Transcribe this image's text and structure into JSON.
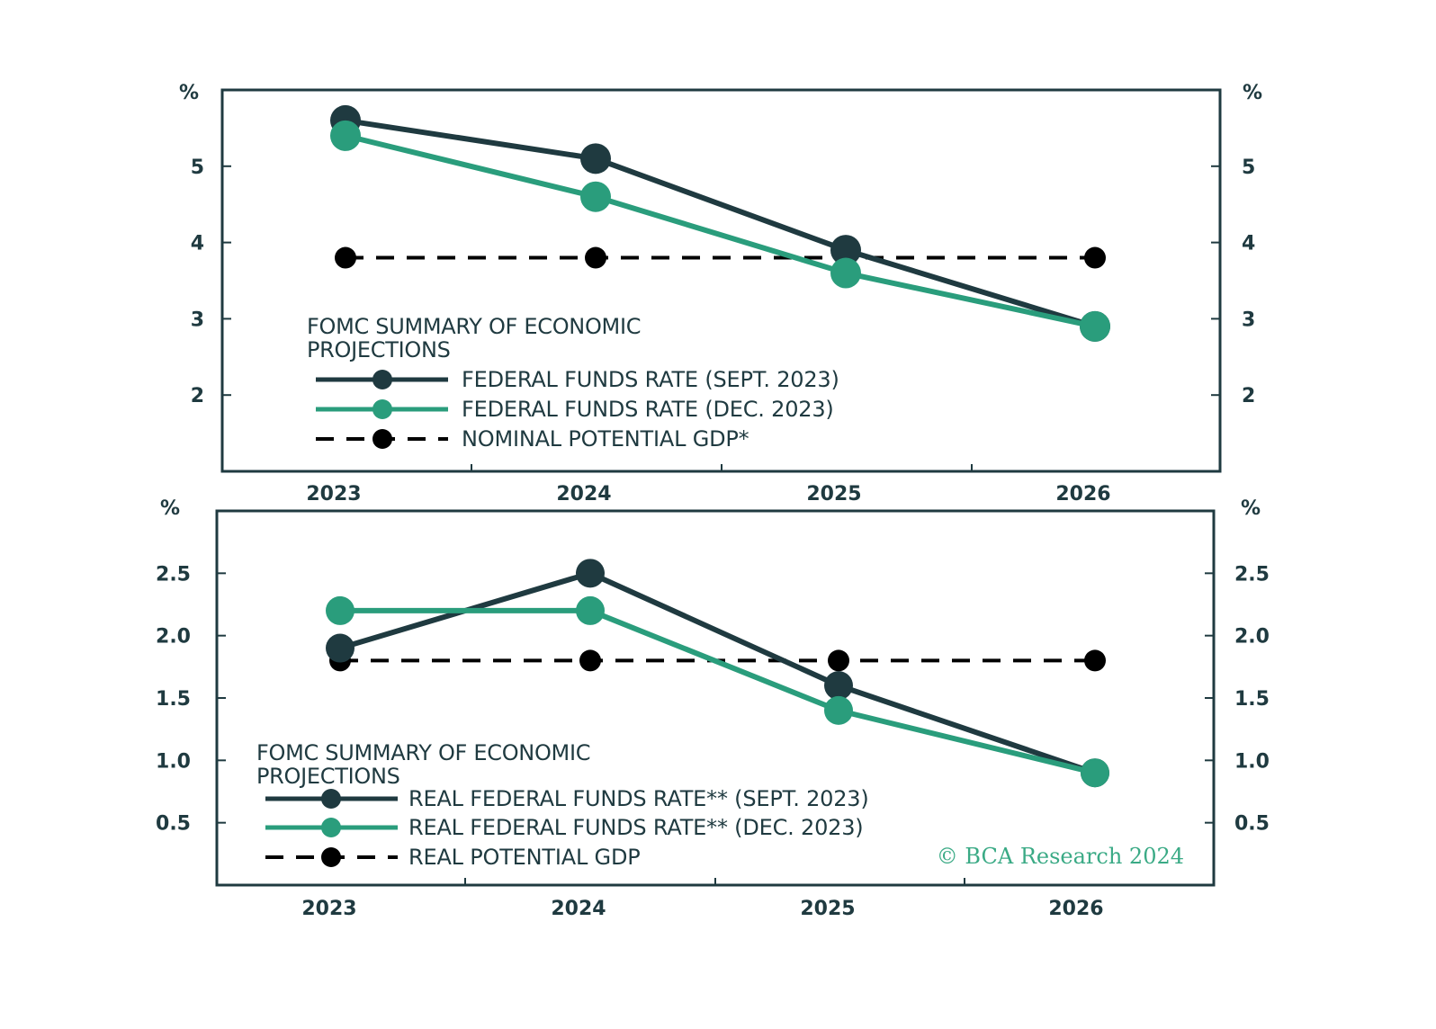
{
  "colors": {
    "sept": "#1f3a40",
    "dec": "#2a9d7c",
    "potential": "#000000",
    "axis": "#1f3a40",
    "watermark": "#3aaa85",
    "text": "#1f3a40"
  },
  "chart_data": [
    {
      "type": "line",
      "panel": "top",
      "categories": [
        "2023",
        "2024",
        "2025",
        "2026"
      ],
      "ylim": [
        1.0,
        6.0
      ],
      "yticks": [
        "5",
        "4",
        "3",
        "2"
      ],
      "ytick_values": [
        5,
        4,
        3,
        2
      ],
      "unit_label_left": "%",
      "unit_label_right": "%",
      "grid": false,
      "legend_placement": "bottom-left",
      "legend_title_lines": [
        "FOMC SUMMARY OF ECONOMIC",
        "PROJECTIONS"
      ],
      "series": [
        {
          "name": "FEDERAL FUNDS RATE (SEPT. 2023)",
          "style": "solid",
          "color_key": "sept",
          "values": [
            5.6,
            5.1,
            3.9,
            2.9
          ]
        },
        {
          "name": "FEDERAL FUNDS RATE (DEC. 2023)",
          "style": "solid",
          "color_key": "dec",
          "values": [
            5.4,
            4.6,
            3.6,
            2.9
          ]
        },
        {
          "name": "NOMINAL POTENTIAL GDP*",
          "style": "dashed",
          "color_key": "potential",
          "values": [
            3.8,
            3.8,
            3.8,
            3.8
          ]
        }
      ]
    },
    {
      "type": "line",
      "panel": "bottom",
      "categories": [
        "2023",
        "2024",
        "2025",
        "2026"
      ],
      "ylim": [
        0.0,
        3.0
      ],
      "yticks": [
        "2.5",
        "2.0",
        "1.5",
        "1.0",
        "0.5"
      ],
      "ytick_values": [
        2.5,
        2.0,
        1.5,
        1.0,
        0.5
      ],
      "unit_label_left": "%",
      "unit_label_right": "%",
      "grid": false,
      "legend_placement": "bottom-left",
      "legend_title_lines": [
        "FOMC SUMMARY OF ECONOMIC",
        "PROJECTIONS"
      ],
      "series": [
        {
          "name": "REAL FEDERAL FUNDS RATE** (SEPT. 2023)",
          "style": "solid",
          "color_key": "sept",
          "values": [
            1.9,
            2.5,
            1.6,
            0.9
          ]
        },
        {
          "name": "REAL FEDERAL FUNDS RATE** (DEC. 2023)",
          "style": "solid",
          "color_key": "dec",
          "values": [
            2.2,
            2.2,
            1.4,
            0.9
          ]
        },
        {
          "name": "REAL POTENTIAL GDP",
          "style": "dashed",
          "color_key": "potential",
          "values": [
            1.8,
            1.8,
            1.8,
            1.8
          ]
        }
      ],
      "watermark": "© BCA Research 2024"
    }
  ]
}
